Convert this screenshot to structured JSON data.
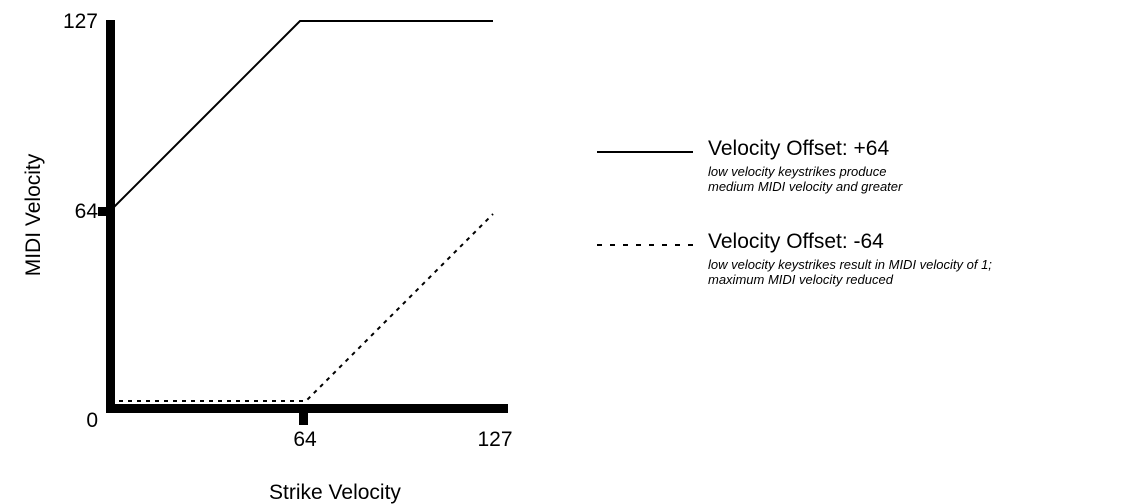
{
  "chart_data": {
    "type": "line",
    "xlabel": "Strike Velocity",
    "ylabel": "MIDI Velocity",
    "xlim": [
      0,
      127
    ],
    "ylim": [
      0,
      127
    ],
    "x_ticks": [
      {
        "value": 64,
        "label": "64"
      },
      {
        "value": 127,
        "label": "127"
      }
    ],
    "y_ticks": [
      {
        "value": 0,
        "label": "0"
      },
      {
        "value": 64,
        "label": "64"
      },
      {
        "value": 127,
        "label": "127"
      }
    ],
    "grid": false,
    "legend_position": "right",
    "series": [
      {
        "name": "Velocity Offset: +64",
        "description": [
          "low velocity keystrikes produce",
          "medium MIDI velocity and greater"
        ],
        "style": "solid",
        "points": [
          [
            0,
            64
          ],
          [
            63,
            127
          ],
          [
            127,
            127
          ]
        ]
      },
      {
        "name": "Velocity Offset: -64",
        "description": [
          "low velocity keystrikes result in MIDI velocity of 1;",
          "maximum MIDI velocity reduced"
        ],
        "style": "dashed",
        "points": [
          [
            0,
            1
          ],
          [
            65,
            1
          ],
          [
            127,
            63
          ]
        ]
      }
    ],
    "colors": {
      "line": "#000000",
      "axis": "#000000"
    }
  }
}
